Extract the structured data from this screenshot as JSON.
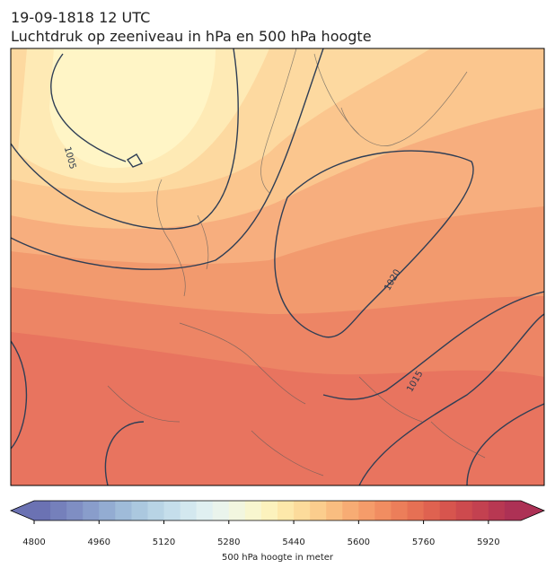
{
  "header": {
    "title": "19-09-1818 12 UTC",
    "subtitle": "Luchtdruk op zeeniveau in hPa en 500 hPa hoogte"
  },
  "map": {
    "contour_labels": [
      "1005",
      "1020",
      "1015"
    ]
  },
  "colorbar": {
    "label": "500 hPa hoogte in meter",
    "range": [
      4800,
      6000
    ],
    "ticks": [
      4800,
      4960,
      5120,
      5280,
      5440,
      5600,
      5760,
      5920
    ],
    "colors": [
      "#6b72b3",
      "#7580bb",
      "#7f8ec3",
      "#899dcb",
      "#93acd2",
      "#9fbbd9",
      "#abc8df",
      "#b8d4e5",
      "#c5deeb",
      "#d3e8ef",
      "#e0f0f1",
      "#eaf4ec",
      "#f2f6df",
      "#f8f6cf",
      "#fcf2bd",
      "#fde8aa",
      "#fcdb9b",
      "#fbcd8d",
      "#f9bd80",
      "#f7ac74",
      "#f59c6a",
      "#f18d61",
      "#ec7e5a",
      "#e67054",
      "#df6250",
      "#d7554e",
      "#cd4a4e",
      "#c34150",
      "#b83852",
      "#ad3155"
    ]
  }
}
